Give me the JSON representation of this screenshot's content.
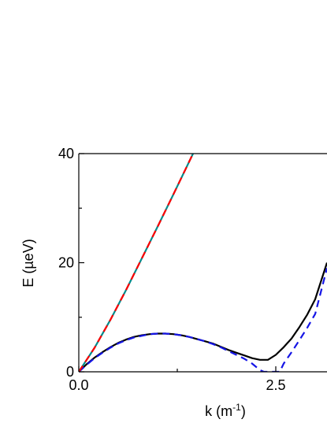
{
  "chart_data": {
    "type": "line",
    "title": "",
    "xlabel": "k (m",
    "xlabel_superscript": "-1",
    "xlabel_suffix": ")",
    "ylabel": "E (µeV)",
    "xlim": [
      0.0,
      3.15
    ],
    "ylim": [
      0,
      40
    ],
    "xticks": [
      0.0,
      2.5
    ],
    "xtick_labels": [
      "0.0",
      "2.5"
    ],
    "yticks": [
      0,
      20,
      40
    ],
    "ytick_labels": [
      "0",
      "20",
      "40"
    ],
    "x_minor_ticks": [
      1.25
    ],
    "y_minor_ticks": [
      10,
      30
    ],
    "grid": false,
    "series": [
      {
        "style": "solid",
        "color": "#000000",
        "x": [
          0.0,
          0.1,
          0.2,
          0.3,
          0.4,
          0.5,
          0.6,
          0.7,
          0.8,
          0.9,
          1.0,
          1.1,
          1.2,
          1.3,
          1.4,
          1.5,
          1.6,
          1.7,
          1.8,
          1.9,
          2.0,
          2.1,
          2.2,
          2.3,
          2.4,
          2.5,
          2.6,
          2.7,
          2.8,
          2.9,
          3.0,
          3.15
        ],
        "y": [
          0.0,
          1.4,
          2.6,
          3.6,
          4.5,
          5.3,
          5.9,
          6.4,
          6.7,
          6.9,
          7.0,
          7.0,
          6.9,
          6.7,
          6.4,
          6.0,
          5.6,
          5.2,
          4.6,
          4.0,
          3.5,
          3.0,
          2.5,
          2.2,
          2.2,
          3.1,
          4.5,
          6.1,
          8.2,
          10.5,
          13.3,
          20.0
        ]
      },
      {
        "style": "dashed",
        "color": "#1515e6",
        "x": [
          0.0,
          0.1,
          0.2,
          0.3,
          0.4,
          0.5,
          0.6,
          0.7,
          0.8,
          0.9,
          1.0,
          1.1,
          1.2,
          1.3,
          1.4,
          1.5,
          1.6,
          1.7,
          1.8,
          1.9,
          2.0,
          2.1,
          2.2,
          2.3,
          2.35,
          2.55,
          2.6,
          2.7,
          2.8,
          2.9,
          3.0,
          3.15
        ],
        "y": [
          0.0,
          1.3,
          2.5,
          3.5,
          4.4,
          5.2,
          5.8,
          6.3,
          6.6,
          6.9,
          7.0,
          7.0,
          6.9,
          6.7,
          6.4,
          6.0,
          5.6,
          5.1,
          4.5,
          3.8,
          3.1,
          2.4,
          1.5,
          0.3,
          0.0,
          0.0,
          1.5,
          3.6,
          5.8,
          8.1,
          10.6,
          19.0
        ]
      },
      {
        "style": "solid",
        "color": "#008b8b",
        "x": [
          0.0,
          0.2,
          0.4,
          0.6,
          0.8,
          1.0,
          1.2,
          1.35,
          1.45
        ],
        "y": [
          0.0,
          4.4,
          9.5,
          15.0,
          20.8,
          26.6,
          32.5,
          37.0,
          40.0
        ]
      },
      {
        "style": "dashed",
        "color": "#ff0000",
        "x": [
          0.0,
          0.2,
          0.4,
          0.6,
          0.8,
          1.0,
          1.2,
          1.35,
          1.45
        ],
        "y": [
          0.0,
          4.4,
          9.5,
          15.0,
          20.8,
          26.6,
          32.5,
          37.0,
          40.0
        ]
      }
    ]
  }
}
